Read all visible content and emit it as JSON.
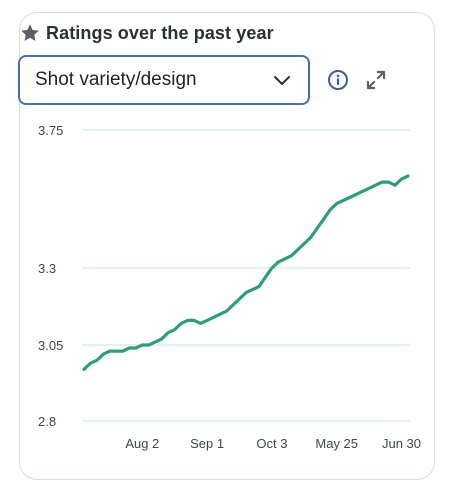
{
  "header": {
    "title": "Ratings over the past year",
    "icon": "star-icon"
  },
  "dropdown": {
    "selected": "Shot variety/design",
    "icon": "chevron-down-icon"
  },
  "toolbar": {
    "info_icon": "info-icon",
    "expand_icon": "expand-icon"
  },
  "colors": {
    "line": "#2e9e74",
    "grid": "#d6e6ee",
    "accent_border": "#4a6fa5",
    "icon_blue": "#3c5f8f"
  },
  "chart_data": {
    "type": "line",
    "title": "Ratings over the past year",
    "xlabel": "",
    "ylabel": "",
    "yticks": [
      "3.75",
      "3.3",
      "3.05",
      "2.8"
    ],
    "ytick_values": [
      3.75,
      3.3,
      3.05,
      2.8
    ],
    "ylim": [
      2.8,
      3.75
    ],
    "xticks": [
      "Aug 2",
      "Sep 1",
      "Oct 3",
      "May 25",
      "Jun 30"
    ],
    "xtick_positions": [
      9,
      19,
      29,
      39,
      49
    ],
    "grid": true,
    "series": [
      {
        "name": "",
        "x": [
          0,
          1,
          2,
          3,
          4,
          5,
          6,
          7,
          8,
          9,
          10,
          11,
          12,
          13,
          14,
          15,
          16,
          17,
          18,
          19,
          20,
          21,
          22,
          23,
          24,
          25,
          26,
          27,
          28,
          29,
          30,
          31,
          32,
          33,
          34,
          35,
          36,
          37,
          38,
          39,
          40,
          41,
          42,
          43,
          44,
          45,
          46,
          47,
          48,
          49,
          50
        ],
        "values": [
          2.97,
          2.99,
          3.0,
          3.02,
          3.03,
          3.03,
          3.03,
          3.04,
          3.04,
          3.05,
          3.05,
          3.06,
          3.07,
          3.09,
          3.1,
          3.12,
          3.13,
          3.13,
          3.12,
          3.13,
          3.14,
          3.15,
          3.16,
          3.18,
          3.2,
          3.22,
          3.23,
          3.24,
          3.27,
          3.3,
          3.32,
          3.33,
          3.34,
          3.36,
          3.38,
          3.4,
          3.43,
          3.46,
          3.49,
          3.51,
          3.52,
          3.53,
          3.54,
          3.55,
          3.56,
          3.57,
          3.58,
          3.58,
          3.57,
          3.59,
          3.6
        ]
      }
    ]
  }
}
